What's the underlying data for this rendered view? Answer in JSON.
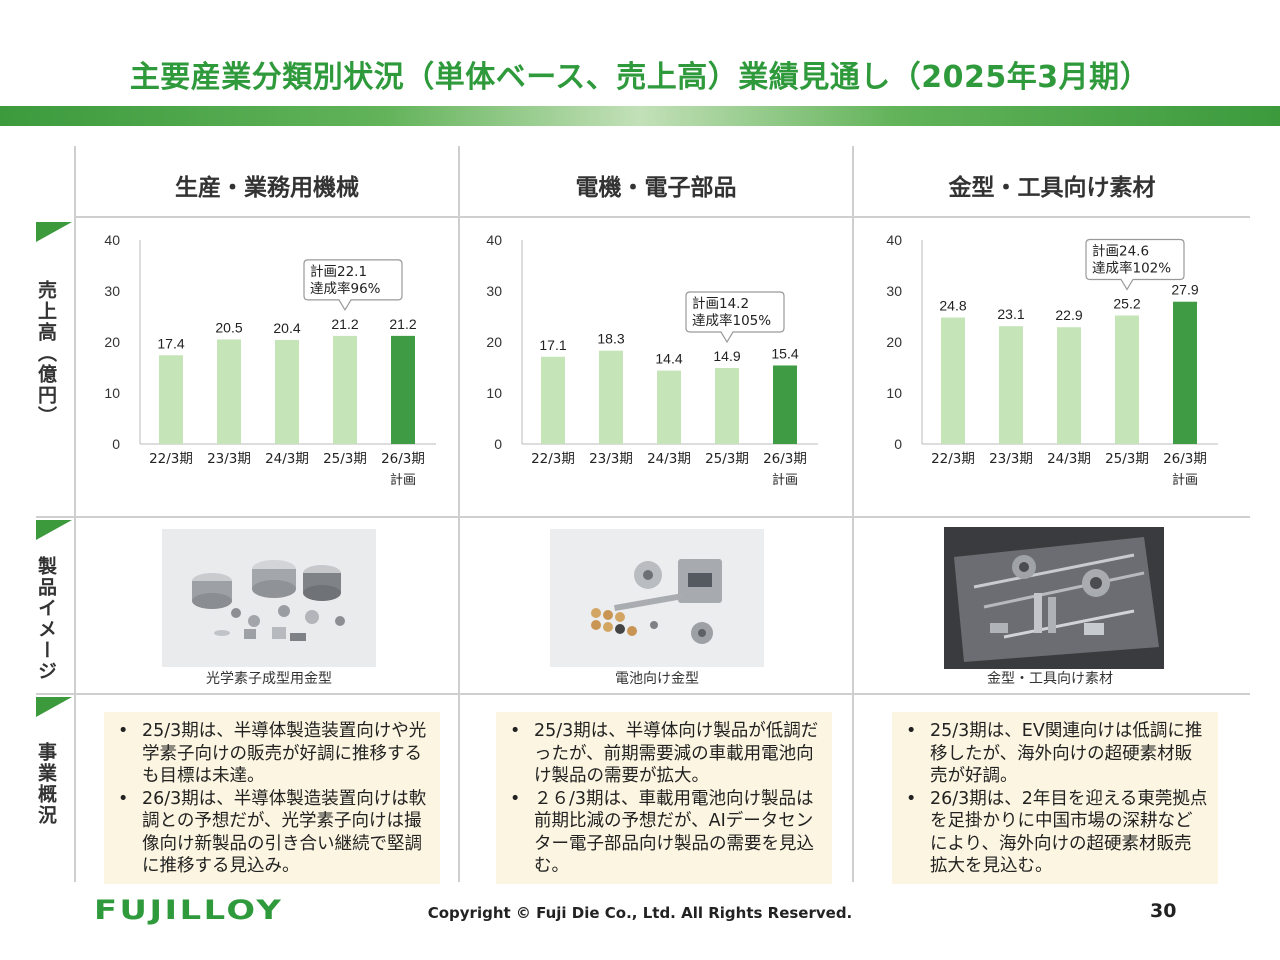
{
  "title": "主要産業分類別状況（単体ベース、売上高）業績見通し（2025年3月期）",
  "row_labels": {
    "sales": "売上高（億円）",
    "product": "製品イメージ",
    "business": "事業概況"
  },
  "columns": [
    {
      "heading": "生産・業務用機械",
      "photo_caption": "光学素子成型用金型",
      "summary": [
        "25/3期は、半導体製造装置向けや光学素子向けの販売が好調に推移するも目標は未達。",
        "26/3期は、半導体製造装置向けは軟調との予想だが、光学素子向けは撮像向け新製品の引き合い継続で堅調に推移する見込み。"
      ]
    },
    {
      "heading": "電機・電子部品",
      "photo_caption": "電池向け金型",
      "summary": [
        "25/3期は、半導体向け製品が低調だったが、前期需要減の車載用電池向け製品の需要が拡大。",
        "２６/3期は、車載用電池向け製品は前期比減の予想だが、AIデータセンター電子部品向け製品の需要を見込む。"
      ]
    },
    {
      "heading": "金型・工具向け素材",
      "photo_caption": "金型・工具向け素材",
      "summary": [
        "25/3期は、EV関連向けは低調に推移したが、海外向けの超硬素材販売が好調。",
        "26/3期は、2年目を迎える東莞拠点を足掛かりに中国市場の深耕などにより、海外向けの超硬素材販売拡大を見込む。"
      ]
    }
  ],
  "chart_data": [
    {
      "type": "bar",
      "categories": [
        "22/3期",
        "23/3期",
        "24/3期",
        "25/3期",
        "26/3期"
      ],
      "category_sub": [
        "",
        "",
        "",
        "",
        "計画"
      ],
      "values": [
        17.4,
        20.5,
        20.4,
        21.2,
        21.2
      ],
      "ylim": [
        0,
        40
      ],
      "yticks": [
        0,
        10,
        20,
        30,
        40
      ],
      "colors": [
        "#c5e4b8",
        "#c5e4b8",
        "#c5e4b8",
        "#c5e4b8",
        "#3f9c45"
      ],
      "callout": {
        "index": 3,
        "lines": [
          "計画22.1",
          "達成率96%"
        ]
      }
    },
    {
      "type": "bar",
      "categories": [
        "22/3期",
        "23/3期",
        "24/3期",
        "25/3期",
        "26/3期"
      ],
      "category_sub": [
        "",
        "",
        "",
        "",
        "計画"
      ],
      "values": [
        17.1,
        18.3,
        14.4,
        14.9,
        15.4
      ],
      "ylim": [
        0,
        40
      ],
      "yticks": [
        0,
        10,
        20,
        30,
        40
      ],
      "colors": [
        "#c5e4b8",
        "#c5e4b8",
        "#c5e4b8",
        "#c5e4b8",
        "#3f9c45"
      ],
      "callout": {
        "index": 3,
        "lines": [
          "計画14.2",
          "達成率105%"
        ]
      }
    },
    {
      "type": "bar",
      "categories": [
        "22/3期",
        "23/3期",
        "24/3期",
        "25/3期",
        "26/3期"
      ],
      "category_sub": [
        "",
        "",
        "",
        "",
        "計画"
      ],
      "values": [
        24.8,
        23.1,
        22.9,
        25.2,
        27.9
      ],
      "ylim": [
        0,
        40
      ],
      "yticks": [
        0,
        10,
        20,
        30,
        40
      ],
      "colors": [
        "#c5e4b8",
        "#c5e4b8",
        "#c5e4b8",
        "#c5e4b8",
        "#3f9c45"
      ],
      "callout": {
        "index": 3,
        "lines": [
          "計画24.6",
          "達成率102%"
        ]
      }
    }
  ],
  "footer": {
    "logo": "FUJILLOY",
    "copyright": "Copyright © Fuji Die Co., Ltd. All Rights Reserved.",
    "page": "30"
  }
}
